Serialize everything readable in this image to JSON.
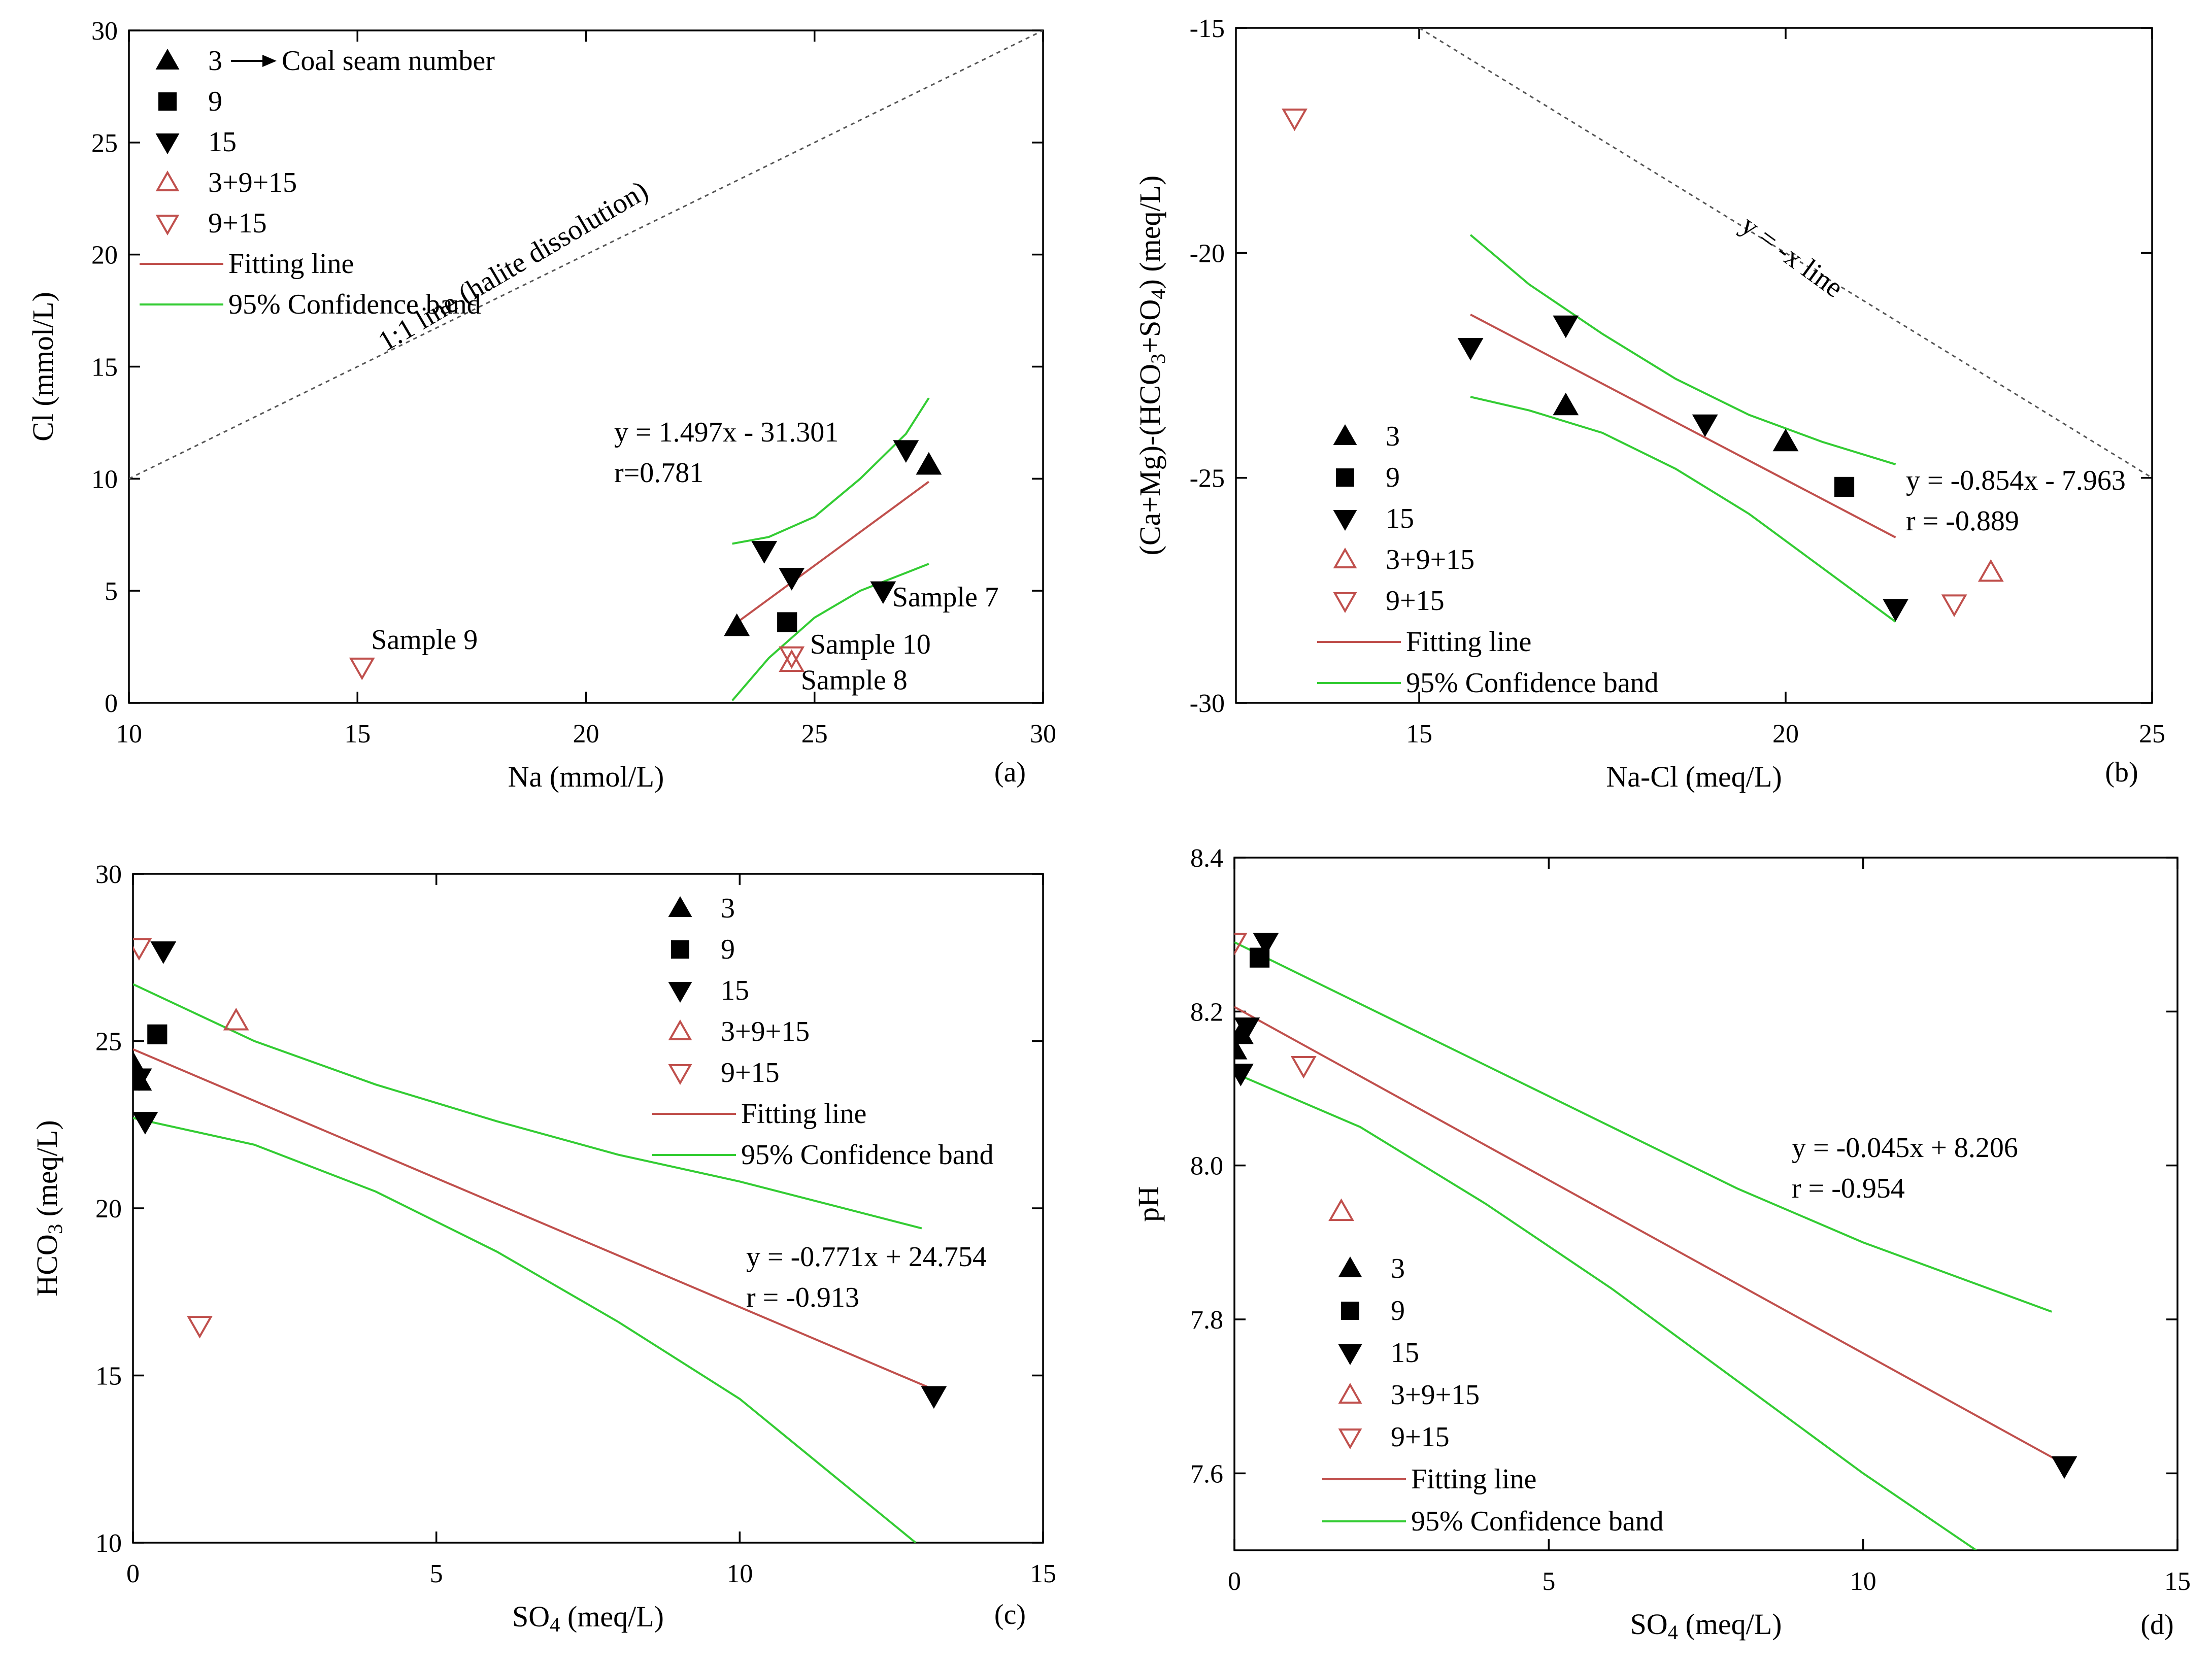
{
  "chart_data": [
    {
      "id": "a",
      "type": "scatter",
      "panel_label": "(a)",
      "xlabel": "Na (mmol/L)",
      "ylabel": "Cl (mmol/L)",
      "xlim": [
        10,
        30
      ],
      "ylim": [
        0,
        30
      ],
      "xticks": [
        10,
        15,
        20,
        25,
        30
      ],
      "yticks": [
        0,
        5,
        10,
        15,
        20,
        25,
        30
      ],
      "series": [
        {
          "name": "3",
          "marker": "tri-up",
          "filled": true,
          "points": [
            [
              23.3,
              3.4
            ],
            [
              27.5,
              10.6
            ]
          ]
        },
        {
          "name": "9",
          "marker": "square",
          "filled": true,
          "points": [
            [
              24.4,
              3.6
            ]
          ]
        },
        {
          "name": "15",
          "marker": "tri-down",
          "filled": true,
          "points": [
            [
              23.9,
              6.8
            ],
            [
              24.5,
              5.6
            ],
            [
              26.5,
              5.0
            ],
            [
              27.0,
              11.3
            ]
          ]
        },
        {
          "name": "3+9+15",
          "marker": "tri-up",
          "filled": false,
          "points": [
            [
              24.5,
              1.8
            ]
          ]
        },
        {
          "name": "9+15",
          "marker": "tri-down",
          "filled": false,
          "points": [
            [
              15.1,
              1.6
            ],
            [
              24.5,
              2.1
            ]
          ]
        }
      ],
      "reference_line": {
        "label": "1:1 line (halite dissolution)",
        "points": [
          [
            10,
            10
          ],
          [
            30,
            30
          ]
        ]
      },
      "fit": {
        "equation": "y = 1.497x - 31.301",
        "r": "r=0.781",
        "x_range": [
          23.2,
          27.5
        ],
        "slope": 1.497,
        "intercept": -31.301
      },
      "confidence_band": {
        "upper": [
          [
            23.2,
            7.1
          ],
          [
            24.0,
            7.4
          ],
          [
            25.0,
            8.3
          ],
          [
            26.0,
            10.0
          ],
          [
            27.0,
            12.0
          ],
          [
            27.5,
            13.6
          ]
        ],
        "lower": [
          [
            23.2,
            0.1
          ],
          [
            24.0,
            2.0
          ],
          [
            25.0,
            3.8
          ],
          [
            26.0,
            5.0
          ],
          [
            27.0,
            5.8
          ],
          [
            27.5,
            6.2
          ]
        ]
      },
      "annotations": [
        {
          "text": "Sample 9",
          "x": 15.3,
          "y": 2.4
        },
        {
          "text": "Sample 7",
          "x": 26.7,
          "y": 4.3
        },
        {
          "text": "Sample 10",
          "x": 24.9,
          "y": 2.2
        },
        {
          "text": "Sample 8",
          "x": 24.7,
          "y": 0.6
        }
      ],
      "legend": {
        "location": "top-left",
        "items": [
          {
            "type": "tri-up",
            "filled": true,
            "label": "3",
            "arrow_text": "Coal seam number"
          },
          {
            "type": "square",
            "filled": true,
            "label": "9"
          },
          {
            "type": "tri-down",
            "filled": true,
            "label": "15"
          },
          {
            "type": "tri-up",
            "filled": false,
            "label": "3+9+15"
          },
          {
            "type": "tri-down",
            "filled": false,
            "label": "9+15"
          },
          {
            "type": "fit",
            "label": "Fitting line"
          },
          {
            "type": "band",
            "label": "95% Confidence band"
          }
        ]
      }
    },
    {
      "id": "b",
      "type": "scatter",
      "panel_label": "(b)",
      "xlabel": "Na-Cl (meq/L)",
      "ylabel": "(Ca+Mg)-(HCO3+SO4) (meq/L)",
      "xlim": [
        12.5,
        25
      ],
      "ylim": [
        -30,
        -15
      ],
      "xticks": [
        15,
        20,
        25
      ],
      "yticks": [
        -30,
        -25,
        -20,
        -15
      ],
      "series": [
        {
          "name": "3",
          "marker": "tri-up",
          "filled": true,
          "points": [
            [
              17.0,
              -23.4
            ],
            [
              20.0,
              -24.2
            ]
          ]
        },
        {
          "name": "9",
          "marker": "square",
          "filled": true,
          "points": [
            [
              20.8,
              -25.2
            ]
          ]
        },
        {
          "name": "15",
          "marker": "tri-down",
          "filled": true,
          "points": [
            [
              15.7,
              -22.1
            ],
            [
              17.0,
              -21.6
            ],
            [
              18.9,
              -23.8
            ],
            [
              21.5,
              -27.9
            ]
          ]
        },
        {
          "name": "3+9+15",
          "marker": "tri-up",
          "filled": false,
          "points": [
            [
              22.8,
              -27.1
            ]
          ]
        },
        {
          "name": "9+15",
          "marker": "tri-down",
          "filled": false,
          "points": [
            [
              13.3,
              -17.0
            ],
            [
              22.3,
              -27.8
            ]
          ]
        }
      ],
      "reference_line": {
        "label": "y = -x line",
        "points": [
          [
            15,
            -15
          ],
          [
            25,
            -25
          ]
        ]
      },
      "fit": {
        "equation": "y = -0.854x - 7.963",
        "r": "r = -0.889",
        "x_range": [
          15.7,
          21.5
        ],
        "slope": -0.854,
        "intercept": -7.963
      },
      "confidence_band": {
        "upper": [
          [
            15.7,
            -19.6
          ],
          [
            16.5,
            -20.7
          ],
          [
            17.5,
            -21.8
          ],
          [
            18.5,
            -22.8
          ],
          [
            19.5,
            -23.6
          ],
          [
            20.5,
            -24.2
          ],
          [
            21.5,
            -24.7
          ]
        ],
        "lower": [
          [
            15.7,
            -23.2
          ],
          [
            16.5,
            -23.5
          ],
          [
            17.5,
            -24.0
          ],
          [
            18.5,
            -24.8
          ],
          [
            19.5,
            -25.8
          ],
          [
            20.5,
            -27.0
          ],
          [
            21.5,
            -28.2
          ]
        ]
      },
      "annotations": [],
      "legend": {
        "location": "middle-left",
        "items": [
          {
            "type": "tri-up",
            "filled": true,
            "label": "3"
          },
          {
            "type": "square",
            "filled": true,
            "label": "9"
          },
          {
            "type": "tri-down",
            "filled": true,
            "label": "15"
          },
          {
            "type": "tri-up",
            "filled": false,
            "label": "3+9+15"
          },
          {
            "type": "tri-down",
            "filled": false,
            "label": "9+15"
          },
          {
            "type": "fit",
            "label": "Fitting line"
          },
          {
            "type": "band",
            "label": "95% Confidence band"
          }
        ]
      }
    },
    {
      "id": "c",
      "type": "scatter",
      "panel_label": "(c)",
      "xlabel": "SO4 (meq/L)",
      "ylabel": "HCO3 (meq/L)",
      "xlim": [
        0,
        15
      ],
      "ylim": [
        10,
        30
      ],
      "xticks": [
        0,
        5,
        10,
        15
      ],
      "yticks": [
        10,
        15,
        20,
        25,
        30
      ],
      "series": [
        {
          "name": "3",
          "marker": "tri-up",
          "filled": true,
          "points": [
            [
              0.0,
              24.3
            ],
            [
              0.1,
              23.8
            ]
          ]
        },
        {
          "name": "9",
          "marker": "square",
          "filled": true,
          "points": [
            [
              0.4,
              25.2
            ]
          ]
        },
        {
          "name": "15",
          "marker": "tri-down",
          "filled": true,
          "points": [
            [
              0.5,
              27.7
            ],
            [
              0.1,
              23.9
            ],
            [
              0.2,
              22.6
            ],
            [
              13.2,
              14.4
            ]
          ]
        },
        {
          "name": "3+9+15",
          "marker": "tri-up",
          "filled": false,
          "points": [
            [
              1.7,
              25.6
            ]
          ]
        },
        {
          "name": "9+15",
          "marker": "tri-down",
          "filled": false,
          "points": [
            [
              0.1,
              27.8
            ],
            [
              1.1,
              16.5
            ]
          ]
        }
      ],
      "reference_line": null,
      "fit": {
        "equation": "y = -0.771x + 24.754",
        "r": "r = -0.913",
        "x_range": [
          0,
          13.2
        ],
        "slope": -0.771,
        "intercept": 24.754
      },
      "confidence_band": {
        "upper": [
          [
            0,
            26.7
          ],
          [
            2,
            25.0
          ],
          [
            4,
            23.7
          ],
          [
            6,
            22.6
          ],
          [
            8,
            21.6
          ],
          [
            10,
            20.8
          ],
          [
            13,
            19.4
          ]
        ],
        "lower": [
          [
            0,
            22.7
          ],
          [
            2,
            21.9
          ],
          [
            4,
            20.5
          ],
          [
            6,
            18.7
          ],
          [
            8,
            16.6
          ],
          [
            10,
            14.3
          ],
          [
            12.9,
            10.0
          ]
        ]
      },
      "annotations": [],
      "legend": {
        "location": "top-right",
        "items": [
          {
            "type": "tri-up",
            "filled": true,
            "label": "3"
          },
          {
            "type": "square",
            "filled": true,
            "label": "9"
          },
          {
            "type": "tri-down",
            "filled": true,
            "label": "15"
          },
          {
            "type": "tri-up",
            "filled": false,
            "label": "3+9+15"
          },
          {
            "type": "tri-down",
            "filled": false,
            "label": "9+15"
          },
          {
            "type": "fit",
            "label": "Fitting line"
          },
          {
            "type": "band",
            "label": "95% Confidence band"
          }
        ]
      }
    },
    {
      "id": "d",
      "type": "scatter",
      "panel_label": "(d)",
      "xlabel": "SO4 (meq/L)",
      "ylabel": "pH",
      "xlim": [
        0,
        15
      ],
      "ylim": [
        7.5,
        8.4
      ],
      "xticks": [
        0,
        5,
        10,
        15
      ],
      "yticks": [
        7.6,
        7.8,
        8.0,
        8.2,
        8.4
      ],
      "series": [
        {
          "name": "3",
          "marker": "tri-up",
          "filled": true,
          "points": [
            [
              0.0,
              8.15
            ],
            [
              0.1,
              8.17
            ]
          ]
        },
        {
          "name": "9",
          "marker": "square",
          "filled": true,
          "points": [
            [
              0.4,
              8.27
            ]
          ]
        },
        {
          "name": "15",
          "marker": "tri-down",
          "filled": true,
          "points": [
            [
              0.5,
              8.29
            ],
            [
              0.2,
              8.18
            ],
            [
              0.1,
              8.12
            ],
            [
              13.2,
              7.61
            ]
          ]
        },
        {
          "name": "3+9+15",
          "marker": "tri-up",
          "filled": false,
          "points": [
            [
              1.7,
              7.94
            ]
          ]
        },
        {
          "name": "9+15",
          "marker": "tri-down",
          "filled": false,
          "points": [
            [
              0.0,
              8.29
            ],
            [
              1.1,
              8.13
            ]
          ]
        }
      ],
      "reference_line": null,
      "fit": {
        "equation": "y = -0.045x + 8.206",
        "r": "r = -0.954",
        "x_range": [
          0,
          13.2
        ],
        "slope": -0.045,
        "intercept": 8.206
      },
      "confidence_band": {
        "upper": [
          [
            0,
            8.29
          ],
          [
            2,
            8.21
          ],
          [
            4,
            8.13
          ],
          [
            6,
            8.05
          ],
          [
            8,
            7.97
          ],
          [
            10,
            7.9
          ],
          [
            13,
            7.81
          ]
        ],
        "lower": [
          [
            0,
            8.12
          ],
          [
            2,
            8.05
          ],
          [
            4,
            7.95
          ],
          [
            6,
            7.84
          ],
          [
            8,
            7.72
          ],
          [
            10,
            7.6
          ],
          [
            11.8,
            7.5
          ]
        ]
      },
      "annotations": [],
      "legend": {
        "location": "lower-left",
        "items": [
          {
            "type": "tri-up",
            "filled": true,
            "label": "3"
          },
          {
            "type": "square",
            "filled": true,
            "label": "9"
          },
          {
            "type": "tri-down",
            "filled": true,
            "label": "15"
          },
          {
            "type": "tri-up",
            "filled": false,
            "label": "3+9+15"
          },
          {
            "type": "tri-down",
            "filled": false,
            "label": "9+15"
          },
          {
            "type": "fit",
            "label": "Fitting line"
          },
          {
            "type": "band",
            "label": "95% Confidence band"
          }
        ]
      }
    }
  ],
  "colors": {
    "axis": "#000000",
    "fit_line": "#c0504d",
    "confidence_band": "#33cc33",
    "open_marker": "#c0504d",
    "reference_line": "#555555"
  }
}
